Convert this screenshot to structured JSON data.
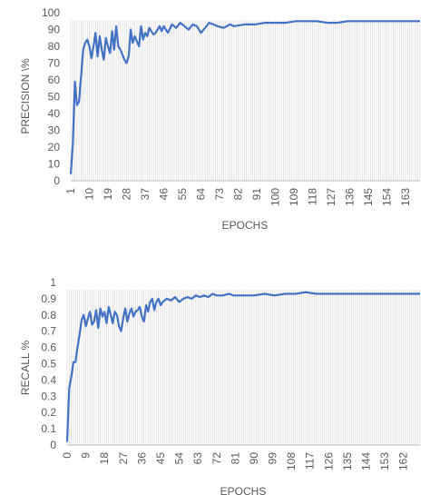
{
  "chart_data": [
    {
      "type": "line",
      "xlabel": "EPOCHS",
      "ylabel": "PRECISION \\%",
      "x_ticks": [
        "1",
        "10",
        "19",
        "28",
        "37",
        "46",
        "55",
        "64",
        "73",
        "82",
        "91",
        "100",
        "109",
        "118",
        "127",
        "136",
        "145",
        "154",
        "163"
      ],
      "x_range": [
        1,
        170
      ],
      "ylim": [
        0,
        100
      ],
      "y_ticks": [
        "0",
        "10",
        "20",
        "30",
        "40",
        "50",
        "60",
        "70",
        "80",
        "90",
        "100"
      ],
      "grid": "vertical lines at every epoch",
      "line_color": "#4472c4",
      "series": [
        {
          "x": [
            1,
            2,
            3,
            4,
            5,
            6,
            7,
            8,
            9,
            10,
            11,
            12,
            13,
            14,
            15,
            16,
            17,
            18,
            19,
            20,
            21,
            22,
            23,
            24,
            25,
            26,
            27,
            28,
            29,
            30,
            31,
            32,
            33,
            34,
            35,
            36,
            37,
            38,
            39,
            40,
            41,
            42,
            43,
            44,
            45,
            46,
            47,
            48,
            50,
            52,
            54,
            56,
            58,
            60,
            62,
            64,
            66,
            68,
            70,
            72,
            75,
            78,
            80,
            85,
            90,
            95,
            100,
            105,
            110,
            115,
            120,
            125,
            130,
            135,
            140,
            145,
            150,
            155,
            160,
            165,
            170
          ],
          "values": [
            4,
            22,
            59,
            45,
            47,
            62,
            78,
            82,
            84,
            80,
            73,
            80,
            88,
            74,
            86,
            78,
            72,
            85,
            80,
            76,
            89,
            78,
            92,
            80,
            78,
            75,
            72,
            70,
            74,
            90,
            82,
            86,
            83,
            80,
            92,
            84,
            88,
            86,
            91,
            89,
            87,
            88,
            90,
            92,
            89,
            92,
            90,
            88,
            93,
            91,
            94,
            92,
            90,
            93,
            92,
            88,
            91,
            94,
            93,
            92,
            91,
            93,
            92,
            93,
            93,
            94,
            94,
            94,
            95,
            95,
            95,
            94,
            94,
            95,
            95,
            95,
            95,
            95,
            95,
            95,
            95
          ]
        }
      ]
    },
    {
      "type": "line",
      "xlabel": "EPOCHS",
      "ylabel": "RECALL %",
      "x_ticks": [
        "0",
        "9",
        "18",
        "27",
        "36",
        "45",
        "54",
        "63",
        "72",
        "81",
        "90",
        "99",
        "108",
        "117",
        "126",
        "135",
        "144",
        "153",
        "162"
      ],
      "x_range": [
        0,
        170
      ],
      "ylim": [
        0,
        1
      ],
      "y_ticks": [
        "0",
        "0.1",
        "0.2",
        "0.3",
        "0.4",
        "0.5",
        "0.6",
        "0.7",
        "0.8",
        "0.9",
        "1"
      ],
      "grid": "vertical lines at every epoch",
      "line_color": "#4472c4",
      "series": [
        {
          "x": [
            0,
            1,
            2,
            3,
            4,
            5,
            6,
            7,
            8,
            9,
            10,
            11,
            12,
            13,
            14,
            15,
            16,
            17,
            18,
            19,
            20,
            21,
            22,
            23,
            24,
            25,
            26,
            27,
            28,
            29,
            30,
            31,
            32,
            33,
            34,
            35,
            36,
            37,
            38,
            39,
            40,
            41,
            42,
            43,
            44,
            45,
            46,
            47,
            48,
            50,
            52,
            54,
            56,
            58,
            60,
            62,
            64,
            66,
            68,
            70,
            72,
            75,
            78,
            80,
            85,
            90,
            95,
            100,
            105,
            110,
            115,
            120,
            125,
            130,
            135,
            140,
            145,
            150,
            155,
            160,
            165,
            170
          ],
          "values": [
            0.02,
            0.35,
            0.42,
            0.51,
            0.51,
            0.6,
            0.68,
            0.77,
            0.8,
            0.73,
            0.78,
            0.82,
            0.74,
            0.76,
            0.83,
            0.72,
            0.84,
            0.79,
            0.82,
            0.75,
            0.85,
            0.8,
            0.75,
            0.82,
            0.8,
            0.73,
            0.7,
            0.78,
            0.84,
            0.76,
            0.81,
            0.84,
            0.79,
            0.82,
            0.83,
            0.85,
            0.79,
            0.76,
            0.86,
            0.82,
            0.88,
            0.9,
            0.83,
            0.88,
            0.9,
            0.86,
            0.88,
            0.89,
            0.9,
            0.89,
            0.91,
            0.88,
            0.9,
            0.91,
            0.9,
            0.92,
            0.91,
            0.92,
            0.91,
            0.93,
            0.92,
            0.92,
            0.93,
            0.92,
            0.92,
            0.92,
            0.93,
            0.92,
            0.93,
            0.93,
            0.94,
            0.93,
            0.93,
            0.93,
            0.93,
            0.93,
            0.93,
            0.93,
            0.93,
            0.93,
            0.93,
            0.93
          ]
        }
      ]
    }
  ]
}
